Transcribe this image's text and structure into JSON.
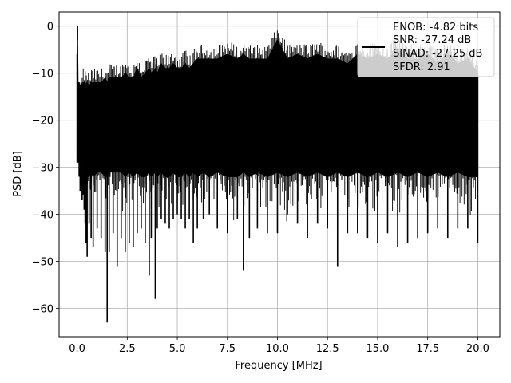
{
  "chart_data": {
    "type": "line",
    "title": "",
    "xlabel": "Frequency [MHz]",
    "ylabel": "PSD [dB]",
    "xlim": [
      -0.9,
      21.1
    ],
    "ylim": [
      -66,
      3
    ],
    "xticks": [
      0.0,
      2.5,
      5.0,
      7.5,
      10.0,
      12.5,
      15.0,
      17.5,
      20.0
    ],
    "xtick_labels": [
      "0.0",
      "2.5",
      "5.0",
      "7.5",
      "10.0",
      "12.5",
      "15.0",
      "17.5",
      "20.0"
    ],
    "yticks": [
      0,
      -10,
      -20,
      -30,
      -40,
      -50,
      -60
    ],
    "ytick_labels": [
      "0",
      "−10",
      "−20",
      "−30",
      "−40",
      "−50",
      "−60"
    ],
    "grid": true,
    "legend_position": "upper right",
    "line_color": "#000000",
    "series": [
      {
        "x": [
          0.0,
          0.02,
          0.05,
          0.1,
          0.15,
          0.2,
          0.25,
          0.3,
          0.35,
          0.4,
          0.45,
          0.5,
          0.6,
          0.7,
          0.8,
          1.0,
          1.2,
          1.4,
          1.5,
          1.6,
          1.8,
          2.0,
          2.2,
          2.4,
          2.6,
          2.8,
          3.0,
          3.2,
          3.4,
          3.6,
          3.7,
          3.9,
          4.0,
          4.2,
          4.4,
          4.6,
          4.8,
          5.0,
          5.2,
          5.4,
          5.6,
          5.8,
          6.0,
          6.3,
          6.6,
          7.0,
          7.5,
          8.0,
          8.3,
          8.6,
          9.0,
          9.5,
          10.0,
          10.5,
          11.0,
          11.5,
          12.0,
          12.5,
          13.0,
          13.5,
          14.0,
          14.5,
          15.0,
          15.5,
          16.0,
          16.5,
          17.0,
          17.5,
          18.0,
          18.5,
          19.0,
          19.5,
          20.0
        ],
        "upper": [
          -6,
          0,
          -12,
          -12,
          -13,
          -12,
          -13,
          -12,
          -12,
          -12,
          -13,
          -12,
          -13,
          -12,
          -12,
          -12,
          -12,
          -11,
          -12,
          -11,
          -11,
          -11,
          -11,
          -10,
          -11,
          -11,
          -9,
          -11,
          -10,
          -9,
          -10,
          -9,
          -10,
          -8,
          -9,
          -9,
          -8,
          -9,
          -9,
          -8,
          -9,
          -8,
          -7,
          -7,
          -7,
          -7,
          -6,
          -7,
          -6,
          -7,
          -7,
          -7,
          -3,
          -7,
          -6,
          -7,
          -6,
          -7,
          -7,
          -8,
          -6,
          -7,
          -6,
          -7,
          -5,
          -7,
          -7,
          -6,
          -8,
          -6,
          -8,
          -7,
          -10
        ],
        "lower": [
          -29,
          -3,
          -29,
          -32,
          -35,
          -34,
          -37,
          -36,
          -39,
          -42,
          -46,
          -49,
          -42,
          -45,
          -47,
          -43,
          -45,
          -48,
          -63,
          -48,
          -44,
          -51,
          -45,
          -48,
          -46,
          -47,
          -44,
          -43,
          -46,
          -53,
          -45,
          -58,
          -43,
          -41,
          -42,
          -43,
          -41,
          -40,
          -41,
          -43,
          -41,
          -46,
          -43,
          -41,
          -40,
          -43,
          -44,
          -41,
          -52,
          -45,
          -43,
          -44,
          -44,
          -40,
          -42,
          -45,
          -42,
          -43,
          -51,
          -44,
          -44,
          -45,
          -46,
          -44,
          -47,
          -46,
          -45,
          -44,
          -43,
          -45,
          -43,
          -43,
          -46
        ],
        "band_lower": [
          -29,
          -3,
          -25,
          -26,
          -27,
          -28,
          -28,
          -30,
          -30,
          -31,
          -31,
          -32,
          -32,
          -31,
          -32,
          -31,
          -31,
          -32,
          -32,
          -31,
          -31,
          -31,
          -31,
          -32,
          -31,
          -32,
          -31,
          -32,
          -32,
          -31,
          -32,
          -31,
          -32,
          -31,
          -32,
          -32,
          -31,
          -32,
          -32,
          -31,
          -32,
          -31,
          -32,
          -31,
          -32,
          -31,
          -32,
          -32,
          -31,
          -32,
          -31,
          -32,
          -31,
          -32,
          -31,
          -32,
          -31,
          -32,
          -31,
          -32,
          -31,
          -32,
          -31,
          -32,
          -31,
          -32,
          -31,
          -32,
          -31,
          -32,
          -31,
          -32,
          -32
        ]
      }
    ],
    "legend": {
      "lines": [
        "ENOB: -4.82 bits",
        "SNR: -27.24 dB",
        "SINAD: -27.25 dB",
        "SFDR: 2.91"
      ]
    }
  }
}
